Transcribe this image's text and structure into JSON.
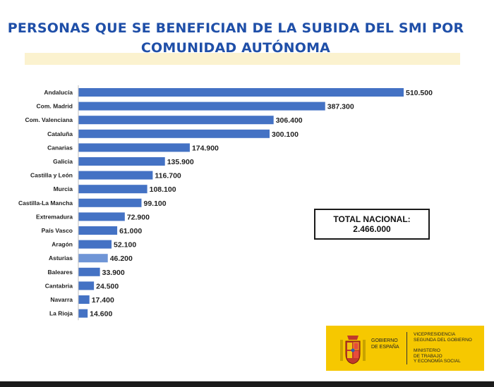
{
  "header": {
    "title_line1": "PERSONAS QUE SE BENEFICIAN DE LA SUBIDA DEL SMI POR",
    "title_line2": "COMUNIDAD AUTÓNOMA"
  },
  "total_box": {
    "label": "TOTAL NACIONAL:",
    "value": "2.466.000"
  },
  "logo": {
    "gobierno_line1": "GOBIERNO",
    "gobierno_line2": "DE ESPAÑA",
    "vice_line1": "VICEPRESIDENCIA",
    "vice_line2": "SEGUNDA DEL GOBIERNO",
    "min_line1": "MINISTERIO",
    "min_line2": "DE TRABAJO",
    "min_line3": "Y ECONOMÍA SOCIAL",
    "panel_color": "#f6c800"
  },
  "colors": {
    "title": "#1f4fa8",
    "bar": "#4472c4",
    "bar_highlight": "#6f95d6"
  },
  "chart_data": {
    "type": "bar",
    "orientation": "horizontal",
    "categories": [
      "Andalucía",
      "Com. Madrid",
      "Com. Valenciana",
      "Cataluña",
      "Canarias",
      "Galicia",
      "Castilla y León",
      "Murcia",
      "Castilla-La Mancha",
      "Extremadura",
      "País Vasco",
      "Aragón",
      "Asturias",
      "Baleares",
      "Cantabria",
      "Navarra",
      "La Rioja"
    ],
    "values": [
      510500,
      387300,
      306400,
      300100,
      174900,
      135900,
      116700,
      108100,
      99100,
      72900,
      61000,
      52100,
      46200,
      33900,
      24500,
      17400,
      14600
    ],
    "value_labels": [
      "510.500",
      "387.300",
      "306.400",
      "300.100",
      "174.900",
      "135.900",
      "116.700",
      "108.100",
      "99.100",
      "72.900",
      "61.000",
      "52.100",
      "46.200",
      "33.900",
      "24.500",
      "17.400",
      "14.600"
    ],
    "highlight_index": 12,
    "grid": false,
    "legend": "none"
  }
}
